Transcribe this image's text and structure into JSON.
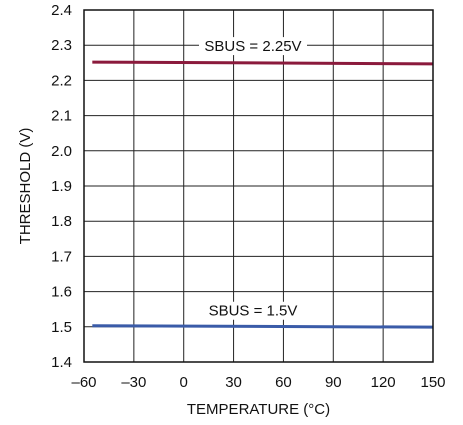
{
  "chart_data": {
    "type": "line",
    "xlabel": "TEMPERATURE (°C)",
    "ylabel": "THRESHOLD (V)",
    "xlim": [
      -60,
      150
    ],
    "ylim": [
      1.4,
      2.4
    ],
    "xticks": [
      -60,
      -30,
      0,
      30,
      60,
      90,
      120,
      150
    ],
    "yticks": [
      1.4,
      1.5,
      1.6,
      1.7,
      1.8,
      1.9,
      2.0,
      2.1,
      2.2,
      2.3,
      2.4
    ],
    "xtick_labels": [
      "–60",
      "–30",
      "0",
      "30",
      "60",
      "90",
      "120",
      "150"
    ],
    "ytick_labels": [
      "1.4",
      "1.5",
      "1.6",
      "1.7",
      "1.8",
      "1.9",
      "2.0",
      "2.1",
      "2.2",
      "2.3",
      "2.4"
    ],
    "grid": true,
    "series": [
      {
        "name": "SBUS = 2.25V",
        "color": "#8b1a3c",
        "x": [
          -55,
          150
        ],
        "y": [
          2.252,
          2.247
        ]
      },
      {
        "name": "SBUS = 1.5V",
        "color": "#3a5ba8",
        "x": [
          -55,
          150
        ],
        "y": [
          1.503,
          1.499
        ]
      }
    ]
  }
}
